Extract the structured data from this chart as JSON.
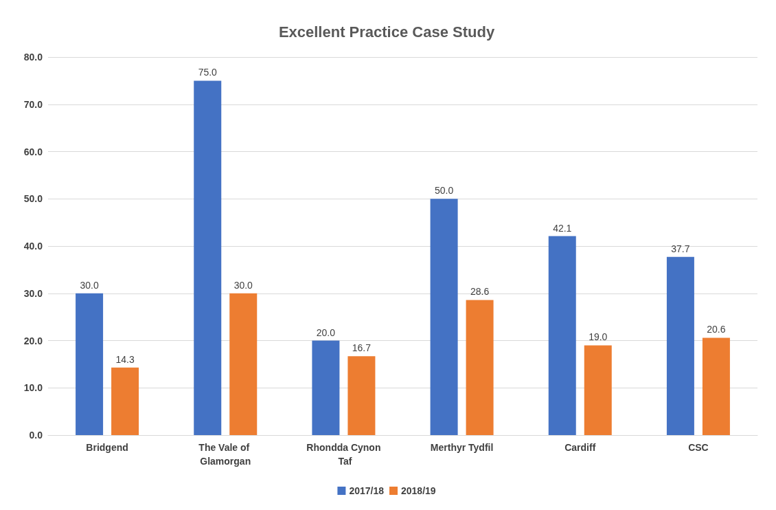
{
  "chart_data": {
    "type": "bar",
    "title": "Excellent Practice Case Study",
    "categories": [
      "Bridgend",
      "The Vale of Glamorgan",
      "Rhondda Cynon Taf",
      "Merthyr Tydfil",
      "Cardiff",
      "CSC"
    ],
    "series": [
      {
        "name": "2017/18",
        "color": "#4472c4",
        "values": [
          30.0,
          75.0,
          20.0,
          50.0,
          42.1,
          37.7
        ],
        "value_labels": [
          "30.0",
          "75.0",
          "20.0",
          "50.0",
          "42.1",
          "37.7"
        ]
      },
      {
        "name": "2018/19",
        "color": "#ed7d31",
        "values": [
          14.3,
          30.0,
          16.7,
          28.6,
          19.0,
          20.6
        ],
        "value_labels": [
          "14.3",
          "30.0",
          "16.7",
          "28.6",
          "19.0",
          "20.6"
        ]
      }
    ],
    "ylim": [
      0,
      80
    ],
    "yticks": [
      {
        "value": 0,
        "label": "0.0"
      },
      {
        "value": 10,
        "label": "10.0"
      },
      {
        "value": 20,
        "label": "20.0"
      },
      {
        "value": 30,
        "label": "30.0"
      },
      {
        "value": 40,
        "label": "40.0"
      },
      {
        "value": 50,
        "label": "50.0"
      },
      {
        "value": 60,
        "label": "60.0"
      },
      {
        "value": 70,
        "label": "70.0"
      },
      {
        "value": 80,
        "label": "80.0"
      }
    ],
    "grid": "y",
    "legend": "bottom"
  }
}
